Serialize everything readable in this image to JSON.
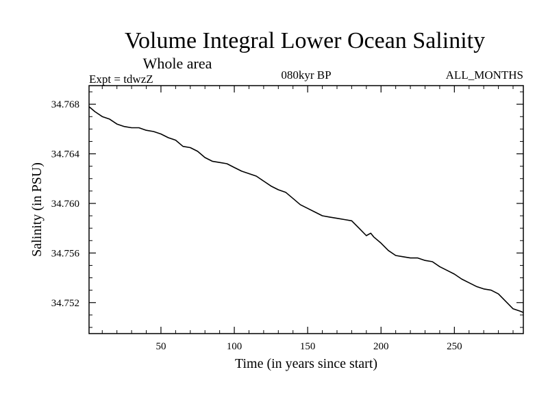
{
  "chart_data": {
    "type": "line",
    "title": "Volume Integral Lower Ocean Salinity",
    "subtitle": "Whole area",
    "experiment": "Expt = tdwzZ",
    "period": "080kyr BP",
    "months": "ALL_MONTHS",
    "xlabel": "Time (in years since start)",
    "ylabel": "Salinity (in PSU)",
    "xlim": [
      1,
      297
    ],
    "ylim": [
      34.7495,
      34.7695
    ],
    "x_ticks": [
      50,
      100,
      150,
      200,
      250
    ],
    "x_minor_step": 10,
    "y_ticks": [
      34.752,
      34.756,
      34.76,
      34.764,
      34.768
    ],
    "y_tick_labels": [
      "34.752",
      "34.756",
      "34.760",
      "34.764",
      "34.768"
    ],
    "y_minor_step": 0.001,
    "grid": false,
    "series": [
      {
        "color": "#000000",
        "x": [
          1,
          5,
          10,
          15,
          20,
          25,
          30,
          35,
          40,
          45,
          50,
          55,
          60,
          65,
          70,
          75,
          80,
          85,
          90,
          95,
          100,
          105,
          110,
          115,
          120,
          125,
          130,
          135,
          140,
          145,
          150,
          155,
          160,
          165,
          170,
          175,
          180,
          185,
          190,
          193,
          195,
          200,
          205,
          210,
          215,
          220,
          225,
          230,
          235,
          240,
          245,
          250,
          255,
          260,
          265,
          270,
          275,
          280,
          285,
          290,
          295,
          297
        ],
        "y": [
          34.7678,
          34.7674,
          34.767,
          34.7668,
          34.7664,
          34.7662,
          34.7661,
          34.7661,
          34.7659,
          34.7658,
          34.7656,
          34.7653,
          34.7651,
          34.7646,
          34.7645,
          34.7642,
          34.7637,
          34.7634,
          34.7633,
          34.7632,
          34.7629,
          34.7626,
          34.7624,
          34.7622,
          34.7618,
          34.7614,
          34.7611,
          34.7609,
          34.7604,
          34.7599,
          34.7596,
          34.7593,
          34.759,
          34.7589,
          34.7588,
          34.7587,
          34.7586,
          34.758,
          34.7574,
          34.7576,
          34.7573,
          34.7568,
          34.7562,
          34.7558,
          34.7557,
          34.7556,
          34.7556,
          34.7554,
          34.7553,
          34.7549,
          34.7546,
          34.7543,
          34.7539,
          34.7536,
          34.7533,
          34.7531,
          34.753,
          34.7527,
          34.7521,
          34.7515,
          34.7513,
          34.7512
        ]
      }
    ]
  }
}
